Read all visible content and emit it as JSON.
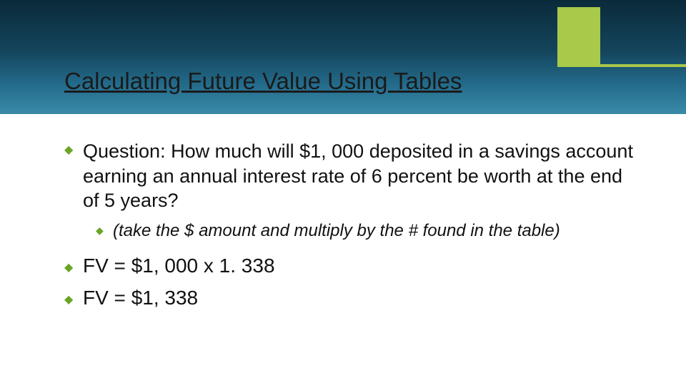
{
  "colors": {
    "accent": "#a8c94a",
    "bullet": "#6aa527",
    "header_gradient_top": "#0a2a3a",
    "header_gradient_bottom": "#3a8aa8",
    "background": "#ffffff",
    "text": "#111111"
  },
  "title": "Calculating Future Value Using Tables",
  "question": {
    "label": "Question:",
    "text": " How much will $1, 000 deposited in a savings account earning an annual interest rate of 6 percent be worth at the end of 5 years?"
  },
  "note": {
    "lead": "(take",
    "rest": " the $ amount and multiply by the # found in the table)"
  },
  "fv_lines": [
    "FV = $1, 000 x 1. 338",
    "FV = $1, 338"
  ]
}
